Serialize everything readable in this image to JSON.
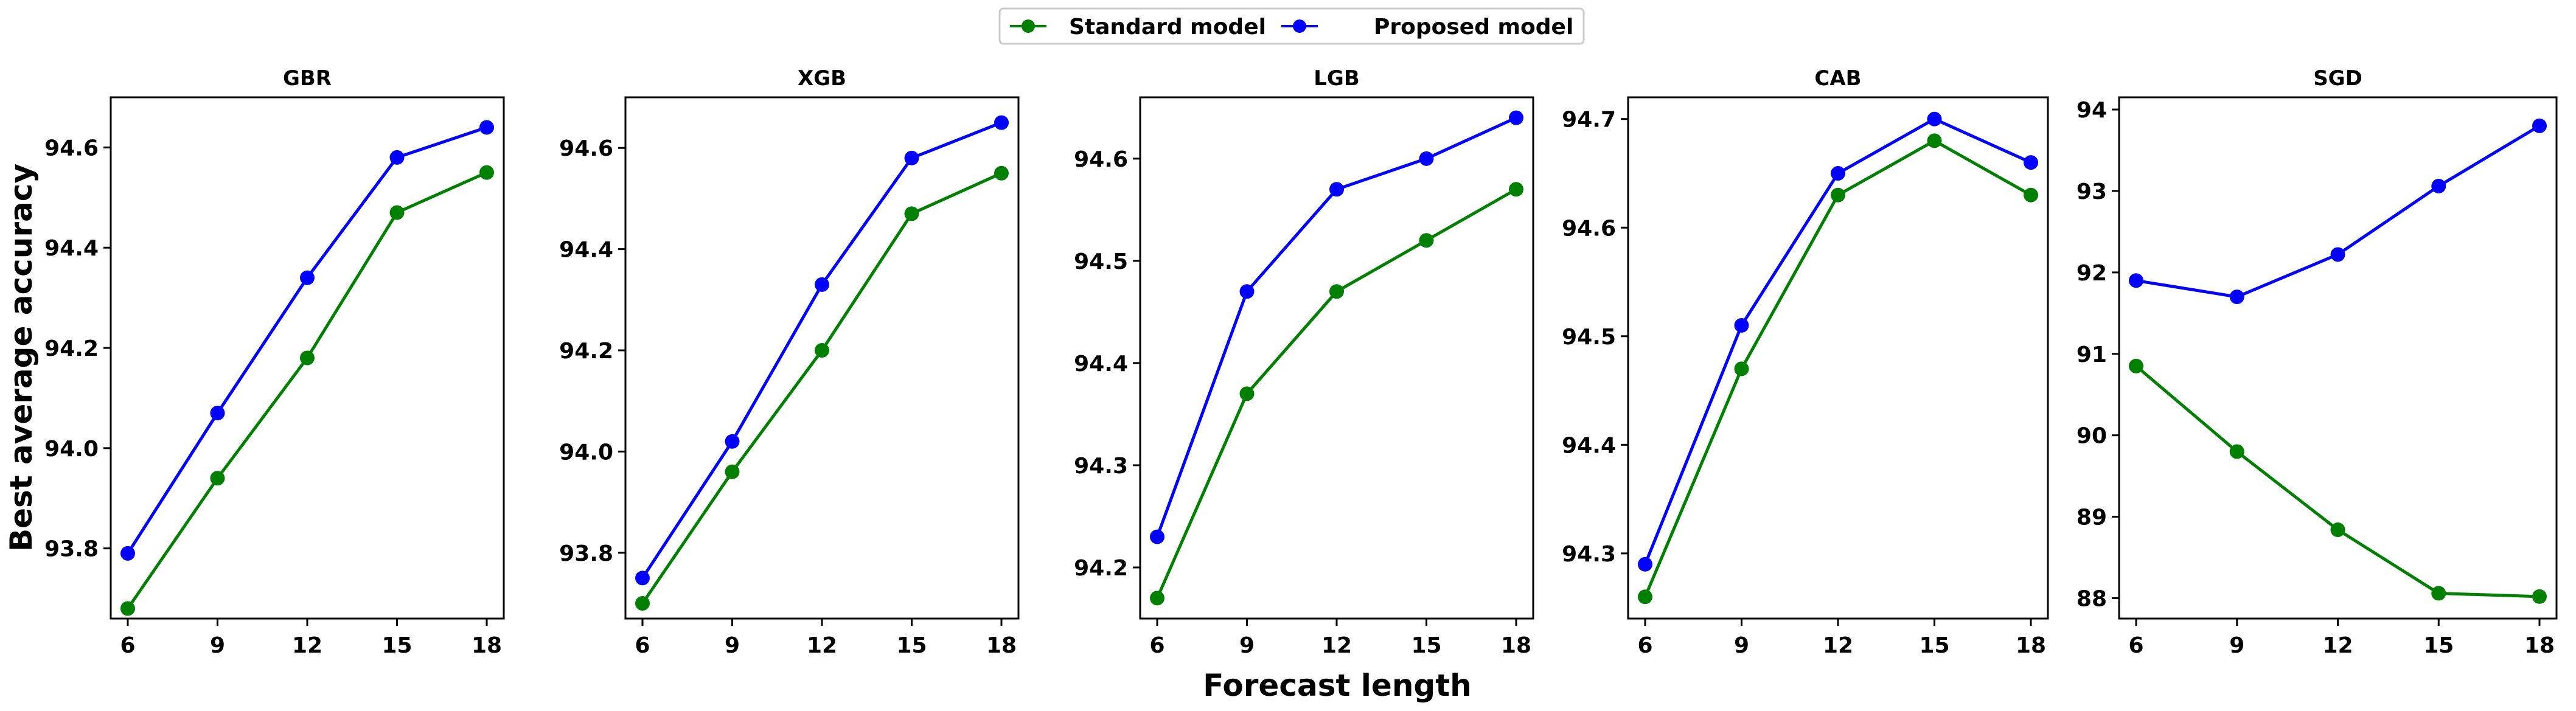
{
  "figure": {
    "xlabel": "Forecast length",
    "ylabel": "Best average accuracy"
  },
  "legend": [
    {
      "name": "Standard model",
      "color": "#008000"
    },
    {
      "name": "Proposed model",
      "color": "#0000ff"
    }
  ],
  "chart_data": [
    {
      "type": "line",
      "title": "GBR",
      "x": [
        6,
        9,
        12,
        15,
        18
      ],
      "xticks": [
        6,
        9,
        12,
        15,
        18
      ],
      "ylim": [
        93.66,
        94.7
      ],
      "yticks": [
        "93.8",
        "94.0",
        "94.2",
        "94.4",
        "94.6"
      ],
      "series": [
        {
          "name": "Standard model",
          "color": "#008000",
          "values": [
            93.68,
            93.94,
            94.18,
            94.47,
            94.55
          ]
        },
        {
          "name": "Proposed model",
          "color": "#0000ff",
          "values": [
            93.79,
            94.07,
            94.34,
            94.58,
            94.64
          ]
        }
      ]
    },
    {
      "type": "line",
      "title": "XGB",
      "x": [
        6,
        9,
        12,
        15,
        18
      ],
      "xticks": [
        6,
        9,
        12,
        15,
        18
      ],
      "ylim": [
        93.67,
        94.7
      ],
      "yticks": [
        "93.8",
        "94.0",
        "94.2",
        "94.4",
        "94.6"
      ],
      "series": [
        {
          "name": "Standard model",
          "color": "#008000",
          "values": [
            93.7,
            93.96,
            94.2,
            94.47,
            94.55
          ]
        },
        {
          "name": "Proposed model",
          "color": "#0000ff",
          "values": [
            93.75,
            94.02,
            94.33,
            94.58,
            94.65
          ]
        }
      ]
    },
    {
      "type": "line",
      "title": "LGB",
      "x": [
        6,
        9,
        12,
        15,
        18
      ],
      "xticks": [
        6,
        9,
        12,
        15,
        18
      ],
      "ylim": [
        94.15,
        94.66
      ],
      "yticks": [
        "94.2",
        "94.3",
        "94.4",
        "94.5",
        "94.6"
      ],
      "series": [
        {
          "name": "Standard model",
          "color": "#008000",
          "values": [
            94.17,
            94.37,
            94.47,
            94.52,
            94.57
          ]
        },
        {
          "name": "Proposed model",
          "color": "#0000ff",
          "values": [
            94.23,
            94.47,
            94.57,
            94.6,
            94.64
          ]
        }
      ]
    },
    {
      "type": "line",
      "title": "CAB",
      "x": [
        6,
        9,
        12,
        15,
        18
      ],
      "xticks": [
        6,
        9,
        12,
        15,
        18
      ],
      "ylim": [
        94.24,
        94.72
      ],
      "yticks": [
        "94.3",
        "94.4",
        "94.5",
        "94.6",
        "94.7"
      ],
      "series": [
        {
          "name": "Standard model",
          "color": "#008000",
          "values": [
            94.26,
            94.47,
            94.63,
            94.68,
            94.63
          ]
        },
        {
          "name": "Proposed model",
          "color": "#0000ff",
          "values": [
            94.29,
            94.51,
            94.65,
            94.7,
            94.66
          ]
        }
      ]
    },
    {
      "type": "line",
      "title": "SGD",
      "x": [
        6,
        9,
        12,
        15,
        18
      ],
      "xticks": [
        6,
        9,
        12,
        15,
        18
      ],
      "ylim": [
        87.75,
        94.15
      ],
      "yticks": [
        "88",
        "89",
        "90",
        "91",
        "92",
        "93",
        "94"
      ],
      "series": [
        {
          "name": "Standard model",
          "color": "#008000",
          "values": [
            90.85,
            89.8,
            88.84,
            88.06,
            88.02
          ]
        },
        {
          "name": "Proposed model",
          "color": "#0000ff",
          "values": [
            91.9,
            91.7,
            92.22,
            93.06,
            93.8
          ]
        }
      ]
    }
  ]
}
